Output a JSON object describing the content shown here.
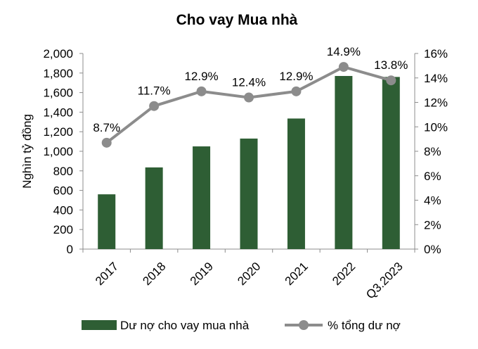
{
  "chart_data": {
    "type": "bar+line",
    "title": "Cho vay Mua nhà",
    "ylabel": "Nghìn tỷ đồng",
    "categories": [
      "2017",
      "2018",
      "2019",
      "2020",
      "2021",
      "2022",
      "Q3.2023"
    ],
    "series": [
      {
        "name": "Dư nợ cho vay mua nhà",
        "type": "bar",
        "axis": "left",
        "color": "#2e5e34",
        "values": [
          560,
          835,
          1050,
          1130,
          1335,
          1770,
          1760
        ]
      },
      {
        "name": "% tổng dư nợ",
        "type": "line",
        "axis": "right",
        "color": "#8c8c8c",
        "values": [
          8.7,
          11.7,
          12.9,
          12.4,
          12.9,
          14.9,
          13.8
        ],
        "labels": [
          "8.7%",
          "11.7%",
          "12.9%",
          "12.4%",
          "12.9%",
          "14.9%",
          "13.8%"
        ]
      }
    ],
    "ylim_left": [
      0,
      2000
    ],
    "ylim_right": [
      0,
      16
    ],
    "left_ticks": [
      "0",
      "200",
      "400",
      "600",
      "800",
      "1,000",
      "1,200",
      "1,400",
      "1,600",
      "1,800",
      "2,000"
    ],
    "right_ticks": [
      "0%",
      "2%",
      "4%",
      "6%",
      "8%",
      "10%",
      "12%",
      "14%",
      "16%"
    ],
    "grid": false,
    "legend_position": "bottom"
  }
}
